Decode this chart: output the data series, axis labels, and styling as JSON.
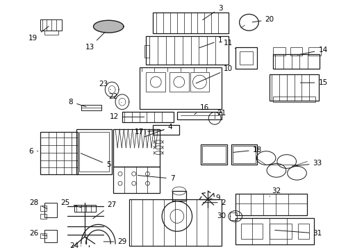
{
  "background_color": "#ffffff",
  "line_color": "#1a1a1a",
  "fig_w": 4.89,
  "fig_h": 3.6,
  "dpi": 100
}
